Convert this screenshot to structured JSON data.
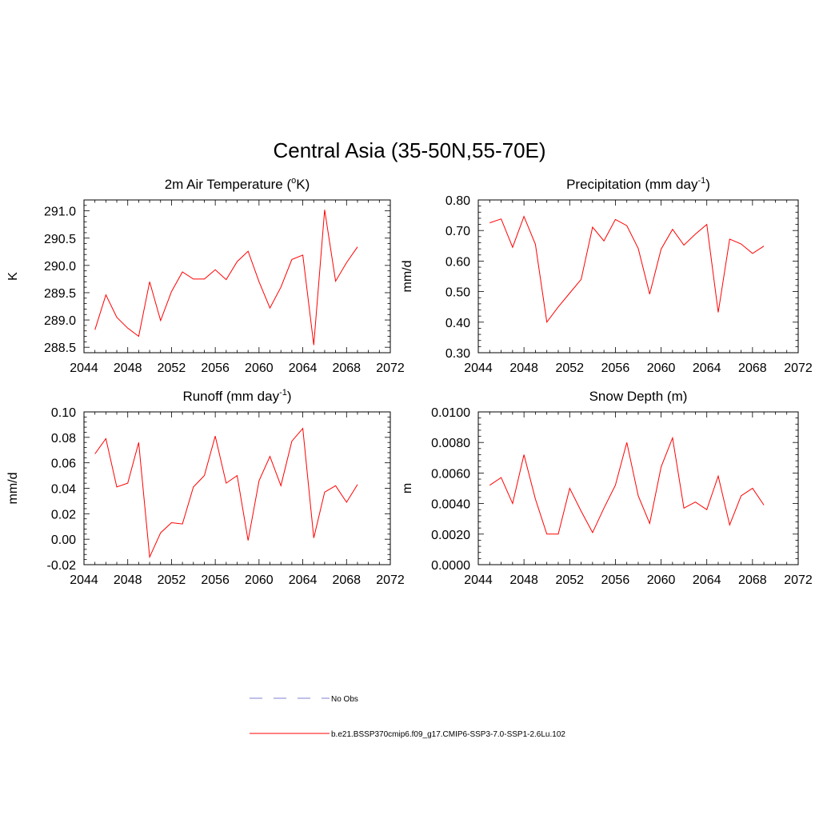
{
  "title": "Central Asia (35-50N,55-70E)",
  "colors": {
    "series": "#ff0000",
    "obs": "#9999dd",
    "axis": "#000000"
  },
  "legend": {
    "obs_label": "No Obs",
    "model_label": "b.e21.BSSP370cmip6.f09_g17.CMIP6-SSP3-7.0-SSP1-2.6Lu.102"
  },
  "chart_data": [
    {
      "type": "line",
      "title_main": "2m Air Temperature (",
      "title_sup": "o",
      "title_end": "K)",
      "ylabel": "K",
      "xlim": [
        2044,
        2072
      ],
      "ylim": [
        288.4,
        291.2
      ],
      "xticks": [
        2044,
        2048,
        2052,
        2056,
        2060,
        2064,
        2068,
        2072
      ],
      "yticks": [
        288.5,
        289.0,
        289.5,
        290.0,
        290.5,
        291.0
      ],
      "ytick_labels": [
        "288.5",
        "289.0",
        "289.5",
        "290.0",
        "290.5",
        "291.0"
      ],
      "x": [
        2045,
        2046,
        2047,
        2048,
        2049,
        2050,
        2051,
        2052,
        2053,
        2054,
        2055,
        2056,
        2057,
        2058,
        2059,
        2060,
        2061,
        2062,
        2063,
        2064,
        2065,
        2066,
        2067,
        2068,
        2069
      ],
      "y": [
        288.82,
        289.46,
        289.05,
        288.85,
        288.7,
        289.7,
        288.99,
        289.52,
        289.88,
        289.75,
        289.75,
        289.92,
        289.74,
        290.07,
        290.26,
        289.7,
        289.22,
        289.6,
        290.11,
        290.19,
        288.54,
        291.02,
        289.71,
        290.05,
        290.34
      ]
    },
    {
      "type": "line",
      "title_main": "Precipitation (mm day",
      "title_sup": "-1",
      "title_end": ")",
      "ylabel": "mm/d",
      "xlim": [
        2044,
        2072
      ],
      "ylim": [
        0.3,
        0.8
      ],
      "xticks": [
        2044,
        2048,
        2052,
        2056,
        2060,
        2064,
        2068,
        2072
      ],
      "yticks": [
        0.3,
        0.4,
        0.5,
        0.6,
        0.7,
        0.8
      ],
      "ytick_labels": [
        "0.30",
        "0.40",
        "0.50",
        "0.60",
        "0.70",
        "0.80"
      ],
      "x": [
        2045,
        2046,
        2047,
        2048,
        2049,
        2050,
        2051,
        2052,
        2053,
        2054,
        2055,
        2056,
        2057,
        2058,
        2059,
        2060,
        2061,
        2062,
        2063,
        2064,
        2065,
        2066,
        2067,
        2068,
        2069
      ],
      "y": [
        0.725,
        0.738,
        0.645,
        0.746,
        0.655,
        0.4,
        0.45,
        0.495,
        0.54,
        0.711,
        0.666,
        0.736,
        0.716,
        0.641,
        0.492,
        0.639,
        0.704,
        0.652,
        0.688,
        0.72,
        0.432,
        0.672,
        0.656,
        0.625,
        0.649
      ]
    },
    {
      "type": "line",
      "title_main": "Runoff (mm day",
      "title_sup": "-1",
      "title_end": ")",
      "ylabel": "mm/d",
      "xlim": [
        2044,
        2072
      ],
      "ylim": [
        -0.02,
        0.1
      ],
      "xticks": [
        2044,
        2048,
        2052,
        2056,
        2060,
        2064,
        2068,
        2072
      ],
      "yticks": [
        -0.02,
        0.0,
        0.02,
        0.04,
        0.06,
        0.08,
        0.1
      ],
      "ytick_labels": [
        "-0.02",
        "0.00",
        "0.02",
        "0.04",
        "0.06",
        "0.08",
        "0.10"
      ],
      "x": [
        2045,
        2046,
        2047,
        2048,
        2049,
        2050,
        2051,
        2052,
        2053,
        2054,
        2055,
        2056,
        2057,
        2058,
        2059,
        2060,
        2061,
        2062,
        2063,
        2064,
        2065,
        2066,
        2067,
        2068,
        2069
      ],
      "y": [
        0.067,
        0.079,
        0.041,
        0.044,
        0.076,
        -0.014,
        0.005,
        0.013,
        0.012,
        0.041,
        0.05,
        0.081,
        0.044,
        0.05,
        -0.001,
        0.046,
        0.065,
        0.042,
        0.077,
        0.087,
        0.001,
        0.037,
        0.042,
        0.029,
        0.043
      ]
    },
    {
      "type": "line",
      "title_main": "Snow Depth (m)",
      "title_sup": "",
      "title_end": "",
      "ylabel": "m",
      "xlim": [
        2044,
        2072
      ],
      "ylim": [
        0.0,
        0.01
      ],
      "xticks": [
        2044,
        2048,
        2052,
        2056,
        2060,
        2064,
        2068,
        2072
      ],
      "yticks": [
        0.0,
        0.002,
        0.004,
        0.006,
        0.008,
        0.01
      ],
      "ytick_labels": [
        "0.0000",
        "0.0020",
        "0.0040",
        "0.0060",
        "0.0080",
        "0.0100"
      ],
      "x": [
        2045,
        2046,
        2047,
        2048,
        2049,
        2050,
        2051,
        2052,
        2053,
        2054,
        2055,
        2056,
        2057,
        2058,
        2059,
        2060,
        2061,
        2062,
        2063,
        2064,
        2065,
        2066,
        2067,
        2068,
        2069
      ],
      "y": [
        0.0052,
        0.0057,
        0.004,
        0.0072,
        0.0043,
        0.002,
        0.002,
        0.005,
        0.0035,
        0.0021,
        0.0037,
        0.0052,
        0.008,
        0.0045,
        0.0027,
        0.0064,
        0.0083,
        0.0037,
        0.0041,
        0.0036,
        0.0058,
        0.0026,
        0.0045,
        0.005,
        0.0039
      ]
    }
  ]
}
